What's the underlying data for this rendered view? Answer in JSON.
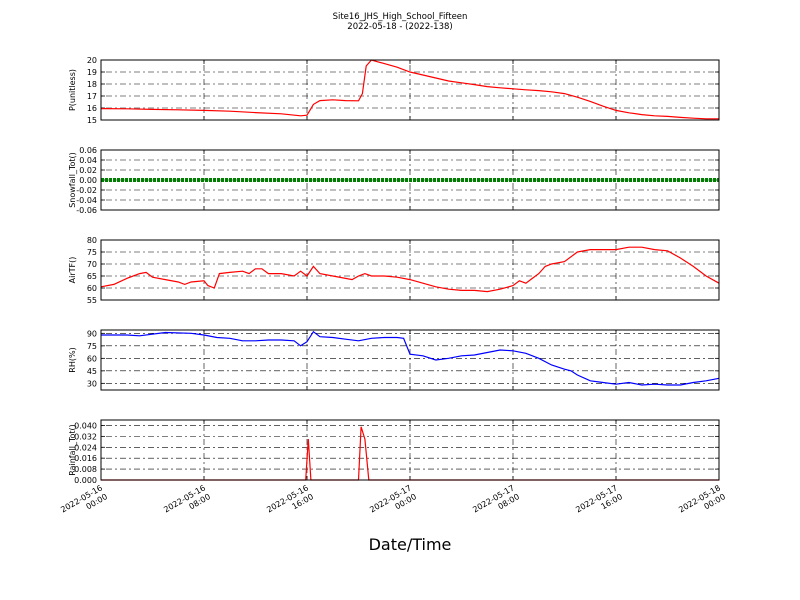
{
  "chart_data": {
    "type": "line",
    "title": "Site16_JHS_High_School_Fifteen",
    "subtitle": "2022-05-18 - (2022-138)",
    "xlabel": "Date/Time",
    "x_ticks": [
      {
        "line1": "2022-05-16",
        "line2": "00:00"
      },
      {
        "line1": "2022-05-16",
        "line2": "08:00"
      },
      {
        "line1": "2022-05-16",
        "line2": "16:00"
      },
      {
        "line1": "2022-05-17",
        "line2": "00:00"
      },
      {
        "line1": "2022-05-17",
        "line2": "08:00"
      },
      {
        "line1": "2022-05-17",
        "line2": "16:00"
      },
      {
        "line1": "2022-05-18",
        "line2": "00:00"
      }
    ],
    "x_range_hours": [
      0,
      48
    ],
    "panels": [
      {
        "name": "P",
        "ylabel": "P(unitless)",
        "color": "#ff0000",
        "ylim": [
          15,
          20
        ],
        "yticks": [
          "15",
          "16",
          "17",
          "18",
          "19",
          "20"
        ],
        "series": [
          [
            0,
            15.95
          ],
          [
            2,
            15.93
          ],
          [
            4,
            15.88
          ],
          [
            6,
            15.85
          ],
          [
            8,
            15.8
          ],
          [
            10,
            15.73
          ],
          [
            12,
            15.62
          ],
          [
            14,
            15.52
          ],
          [
            15.5,
            15.35
          ],
          [
            16,
            15.4
          ],
          [
            16.5,
            16.3
          ],
          [
            17,
            16.62
          ],
          [
            18,
            16.68
          ],
          [
            19,
            16.62
          ],
          [
            20,
            16.6
          ],
          [
            20.3,
            17.2
          ],
          [
            20.6,
            19.5
          ],
          [
            21,
            20.0
          ],
          [
            22,
            19.7
          ],
          [
            23,
            19.4
          ],
          [
            24,
            19.0
          ],
          [
            25,
            18.75
          ],
          [
            26,
            18.5
          ],
          [
            27,
            18.25
          ],
          [
            28,
            18.1
          ],
          [
            29,
            17.95
          ],
          [
            30,
            17.78
          ],
          [
            31,
            17.68
          ],
          [
            32,
            17.6
          ],
          [
            33,
            17.52
          ],
          [
            34,
            17.45
          ],
          [
            35,
            17.35
          ],
          [
            36,
            17.2
          ],
          [
            37,
            16.9
          ],
          [
            38,
            16.55
          ],
          [
            39,
            16.15
          ],
          [
            40,
            15.8
          ],
          [
            41,
            15.6
          ],
          [
            42,
            15.45
          ],
          [
            43,
            15.35
          ],
          [
            44,
            15.3
          ],
          [
            45,
            15.22
          ],
          [
            46,
            15.15
          ],
          [
            47,
            15.1
          ],
          [
            48,
            15.1
          ]
        ]
      },
      {
        "name": "Snowfall",
        "ylabel": "Snowfall_Tot()",
        "color": "#008000",
        "ylim": [
          -0.06,
          0.06
        ],
        "yticks": [
          "-0.06",
          "-0.04",
          "-0.02",
          "0.00",
          "0.02",
          "0.04",
          "0.06"
        ],
        "series": [
          [
            0,
            0
          ],
          [
            48,
            0
          ]
        ]
      },
      {
        "name": "AirT",
        "ylabel": "AirTF()",
        "color": "#ff0000",
        "ylim": [
          55,
          80
        ],
        "yticks": [
          "55",
          "60",
          "65",
          "70",
          "75",
          "80"
        ],
        "series": [
          [
            0,
            60.5
          ],
          [
            1,
            61.5
          ],
          [
            2,
            64
          ],
          [
            3,
            66
          ],
          [
            3.5,
            66.5
          ],
          [
            4,
            64.5
          ],
          [
            5,
            63.5
          ],
          [
            6,
            62.5
          ],
          [
            6.5,
            61.5
          ],
          [
            7,
            62.5
          ],
          [
            8,
            63
          ],
          [
            8.3,
            61
          ],
          [
            8.8,
            60
          ],
          [
            9.2,
            66
          ],
          [
            10,
            66.5
          ],
          [
            11,
            67
          ],
          [
            11.5,
            66
          ],
          [
            12,
            68
          ],
          [
            12.5,
            68
          ],
          [
            13,
            66
          ],
          [
            14,
            66
          ],
          [
            15,
            65
          ],
          [
            15.5,
            67
          ],
          [
            16,
            65
          ],
          [
            16.5,
            69
          ],
          [
            17,
            66
          ],
          [
            18,
            65
          ],
          [
            19,
            64
          ],
          [
            19.5,
            63.5
          ],
          [
            20,
            65
          ],
          [
            20.5,
            66
          ],
          [
            21,
            65
          ],
          [
            22,
            65
          ],
          [
            23,
            64.5
          ],
          [
            24,
            63.5
          ],
          [
            25,
            62
          ],
          [
            26,
            60.5
          ],
          [
            27,
            59.5
          ],
          [
            28,
            59
          ],
          [
            29,
            59
          ],
          [
            30,
            58.5
          ],
          [
            31,
            59.5
          ],
          [
            32,
            61
          ],
          [
            32.5,
            63
          ],
          [
            33,
            62
          ],
          [
            33.5,
            64
          ],
          [
            34,
            66
          ],
          [
            34.5,
            69
          ],
          [
            35,
            70
          ],
          [
            36,
            71
          ],
          [
            37,
            75
          ],
          [
            38,
            76
          ],
          [
            39,
            76
          ],
          [
            40,
            76
          ],
          [
            41,
            77
          ],
          [
            42,
            77
          ],
          [
            43,
            76
          ],
          [
            44,
            75.5
          ],
          [
            45,
            72.5
          ],
          [
            46,
            69
          ],
          [
            47,
            65
          ],
          [
            48,
            62
          ]
        ]
      },
      {
        "name": "RH",
        "ylabel": "RH(%)",
        "color": "#0000ff",
        "ylim": [
          22,
          94
        ],
        "yticks": [
          "30",
          "45",
          "60",
          "75",
          "90"
        ],
        "series": [
          [
            0,
            88
          ],
          [
            2,
            88
          ],
          [
            3,
            87
          ],
          [
            5,
            91
          ],
          [
            7,
            90
          ],
          [
            8,
            88
          ],
          [
            9,
            85
          ],
          [
            10,
            84
          ],
          [
            11,
            81
          ],
          [
            12,
            81
          ],
          [
            13,
            82
          ],
          [
            14,
            82
          ],
          [
            15,
            81
          ],
          [
            15.5,
            75
          ],
          [
            16,
            80
          ],
          [
            16.5,
            92
          ],
          [
            17,
            86
          ],
          [
            18,
            85
          ],
          [
            19,
            83
          ],
          [
            20,
            81
          ],
          [
            21,
            84
          ],
          [
            22,
            85
          ],
          [
            23,
            85
          ],
          [
            23.5,
            84
          ],
          [
            24,
            65
          ],
          [
            25,
            63
          ],
          [
            26,
            58
          ],
          [
            27,
            60
          ],
          [
            28,
            63
          ],
          [
            29,
            64
          ],
          [
            30,
            67
          ],
          [
            31,
            70
          ],
          [
            32,
            69
          ],
          [
            33,
            66
          ],
          [
            34,
            60
          ],
          [
            35,
            52
          ],
          [
            36,
            47
          ],
          [
            36.5,
            45
          ],
          [
            37,
            40
          ],
          [
            38,
            33
          ],
          [
            39,
            31
          ],
          [
            40,
            29
          ],
          [
            41,
            31
          ],
          [
            42,
            28
          ],
          [
            43,
            29
          ],
          [
            44,
            28
          ],
          [
            45,
            28
          ],
          [
            46,
            31
          ],
          [
            47,
            33
          ],
          [
            48,
            36
          ]
        ]
      },
      {
        "name": "Rainfall",
        "ylabel": "Rainfall_Tot()",
        "color": "#ff0000",
        "ylim": [
          0,
          0.044
        ],
        "yticks": [
          "0.000",
          "0.008",
          "0.016",
          "0.024",
          "0.032",
          "0.040"
        ],
        "series": [
          [
            0,
            0
          ],
          [
            15.9,
            0
          ],
          [
            16.1,
            0.03
          ],
          [
            16.3,
            0
          ],
          [
            20,
            0
          ],
          [
            20.2,
            0.039
          ],
          [
            20.5,
            0.03
          ],
          [
            20.8,
            0
          ],
          [
            48,
            0
          ]
        ]
      }
    ]
  }
}
